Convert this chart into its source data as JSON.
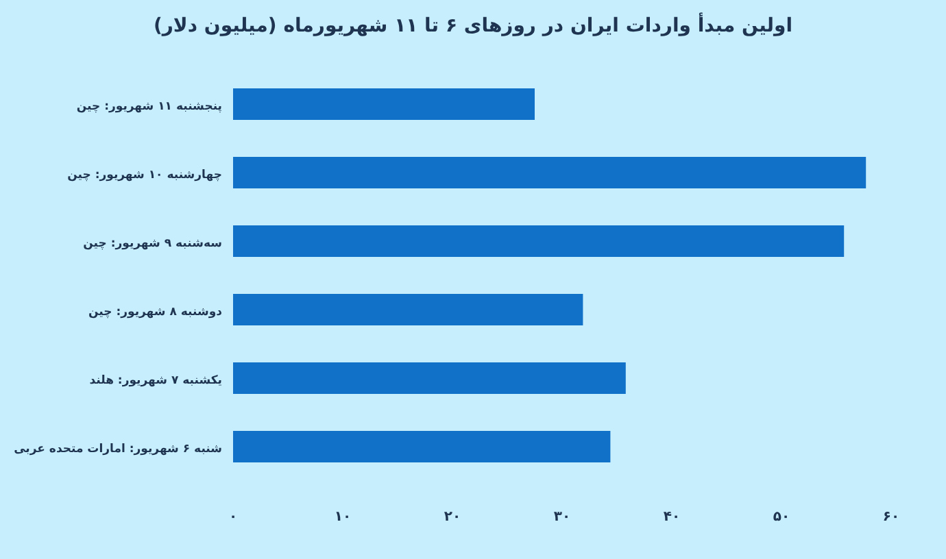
{
  "chart_data": {
    "type": "bar",
    "orientation": "horizontal",
    "title": "اولین مبدأ واردات ایران در روزهای ۶ تا ۱۱ شهریورماه (میلیون دلار)",
    "categories": [
      "پنجشنبه ۱۱ شهریور: چین",
      "چهارشنبه ۱۰ شهریور: چین",
      "سه‌شنبه ۹ شهریور: چین",
      "دوشنبه ۸ شهریور: چین",
      "یکشنبه ۷ شهریور: هلند",
      "شنبه ۶ شهریور: امارات متحده عربی"
    ],
    "values": [
      27.5,
      57.7,
      55.7,
      31.9,
      35.8,
      34.4
    ],
    "color": "#1170c8",
    "xlim": [
      0,
      60
    ],
    "xticks": [
      {
        "value": 0,
        "label": "۰"
      },
      {
        "value": 10,
        "label": "۱۰"
      },
      {
        "value": 20,
        "label": "۲۰"
      },
      {
        "value": 30,
        "label": "۳۰"
      },
      {
        "value": 40,
        "label": "۴۰"
      },
      {
        "value": 50,
        "label": "۵۰"
      },
      {
        "value": 60,
        "label": "۶۰"
      }
    ],
    "grid": false
  }
}
